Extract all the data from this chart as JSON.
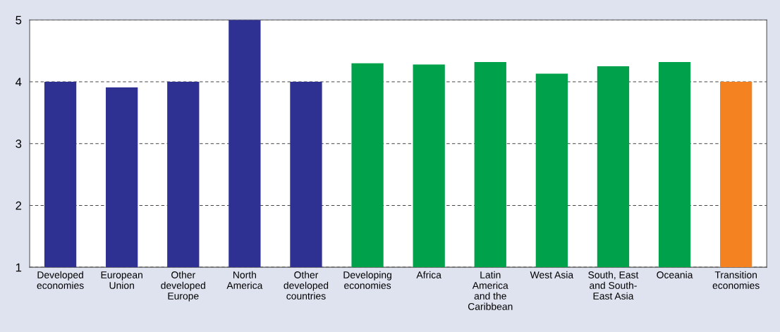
{
  "chart_data": {
    "type": "bar",
    "categories": [
      "Developed\neconomies",
      "European\nUnion",
      "Other\ndeveloped\nEurope",
      "North\nAmerica",
      "Other\ndeveloped\ncountries",
      "Developing\neconomies",
      "Africa",
      "Latin\nAmerica\nand the\nCaribbean",
      "West Asia",
      "South, East\nand South-\nEast Asia",
      "Oceania",
      "Transition\neconomies"
    ],
    "values": [
      4.0,
      3.91,
      4.0,
      5.0,
      4.0,
      4.3,
      4.28,
      4.32,
      4.13,
      4.25,
      4.32,
      4.0
    ],
    "colors": [
      "#2e3192",
      "#2e3192",
      "#2e3192",
      "#2e3192",
      "#2e3192",
      "#00a14b",
      "#00a14b",
      "#00a14b",
      "#00a14b",
      "#00a14b",
      "#00a14b",
      "#f58220"
    ],
    "ylim": [
      1,
      5
    ],
    "yticks": [
      1,
      2,
      3,
      4,
      5
    ],
    "grid": "y"
  }
}
